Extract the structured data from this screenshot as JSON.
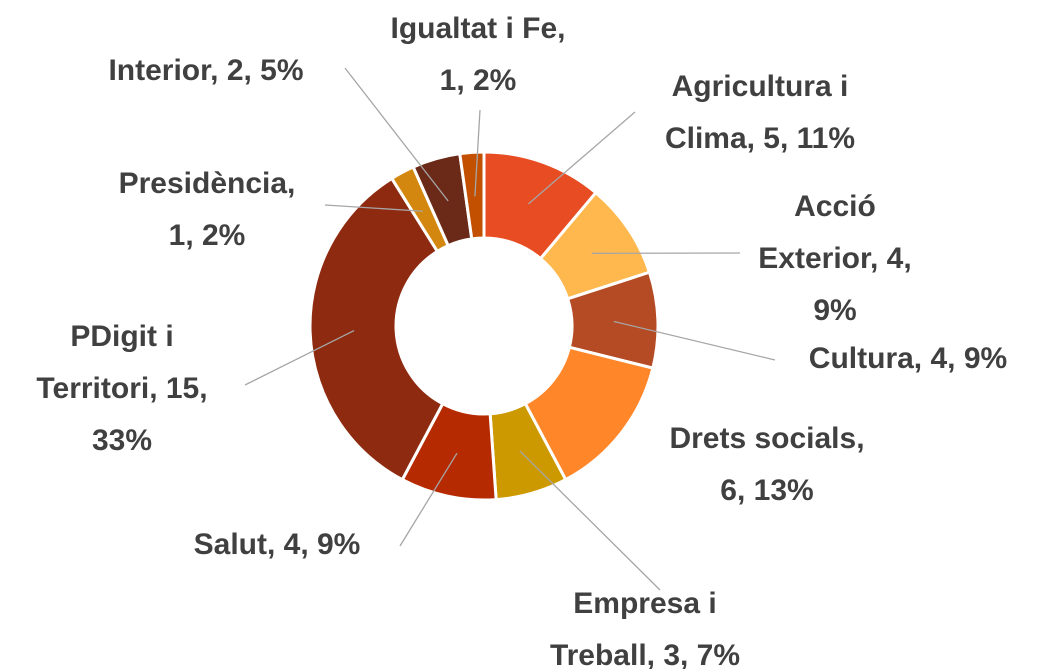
{
  "chart_data": {
    "type": "donut",
    "values": [
      5,
      4,
      4,
      6,
      3,
      4,
      15,
      1,
      2,
      1
    ],
    "value_labels": [
      "Agricultura i Clima, 5, 11%",
      "Acció Exterior, 4, 9%",
      "Cultura, 4, 9%",
      "Drets socials, 6, 13%",
      "Empresa i Treball, 3, 7%",
      "Salut, 4, 9%",
      "PDigit i Territori, 15, 33%",
      "Presidència, 1, 2%",
      "Interior, 2, 5%",
      "Igualtat i Fe, 1, 2%"
    ],
    "colors": [
      "#e84c22",
      "#ffb84d",
      "#b54b24",
      "#ff8629",
      "#cc9900",
      "#b52a00",
      "#8e2a10",
      "#d4870e",
      "#6b2a18",
      "#c25000"
    ]
  }
}
